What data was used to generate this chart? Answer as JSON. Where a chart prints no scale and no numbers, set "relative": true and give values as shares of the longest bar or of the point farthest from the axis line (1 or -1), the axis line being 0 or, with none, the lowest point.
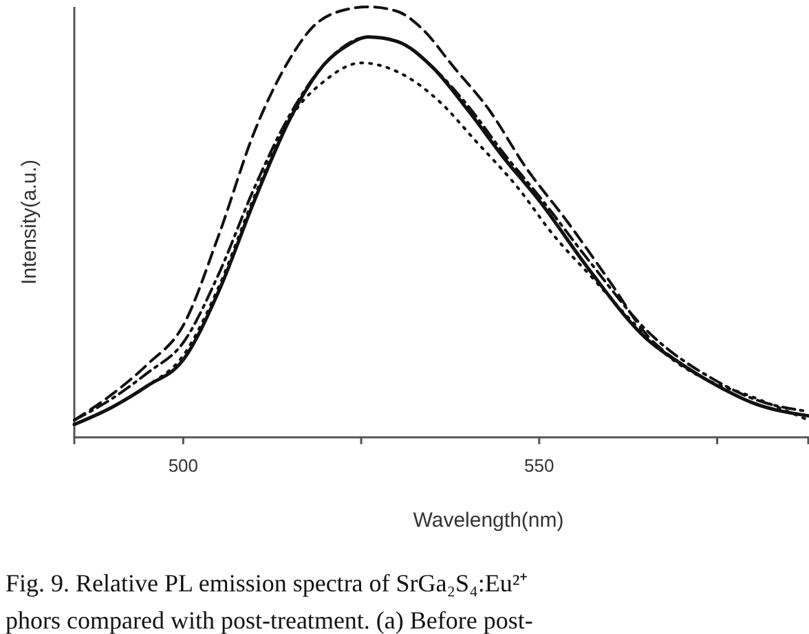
{
  "chart_data": {
    "type": "line",
    "relative": true,
    "xlabel": "Wavelength(nm)",
    "ylabel": "Intensity(a.u.)",
    "xlim": [
      484.7,
      587.8
    ],
    "xticks": [
      500,
      {
        "value": 525,
        "label": null
      },
      550,
      {
        "value": 575,
        "label": null
      }
    ],
    "grid": false,
    "marker": "none",
    "annotations": [
      "Fig. 9. Relative PL emission spectra of SrGa₂S₄:Eu²⁺",
      "phors compared with post-treatment. (a) Before post-"
    ],
    "series": [
      {
        "color": "#111111",
        "line_style": "solid",
        "x": [
          484.7,
          490,
          495,
          500,
          505,
          510,
          515,
          520,
          523,
          526,
          530,
          535,
          540,
          545,
          550,
          557,
          565,
          570,
          575,
          580,
          587.8
        ],
        "values": [
          0.03,
          0.07,
          0.12,
          0.18,
          0.34,
          0.55,
          0.74,
          0.87,
          0.91,
          0.93,
          0.92,
          0.86,
          0.76,
          0.65,
          0.55,
          0.39,
          0.23,
          0.17,
          0.12,
          0.08,
          0.05
        ]
      },
      {
        "color": "#111111",
        "line_style": "dashed",
        "x": [
          484.7,
          490,
          495,
          500,
          505,
          510,
          515,
          518,
          522,
          526,
          530,
          533.5,
          538,
          543,
          548,
          554,
          560,
          565,
          570,
          575,
          580,
          587.8
        ],
        "values": [
          0.04,
          0.1,
          0.17,
          0.26,
          0.47,
          0.71,
          0.88,
          0.95,
          0.99,
          1.0,
          0.99,
          0.95,
          0.86,
          0.76,
          0.63,
          0.5,
          0.36,
          0.24,
          0.17,
          0.12,
          0.08,
          0.05
        ]
      },
      {
        "color": "#111111",
        "line_style": "dotted",
        "x": [
          484.7,
          490,
          495,
          500,
          505,
          510,
          515,
          520,
          525,
          530,
          536,
          541,
          547,
          552,
          557.5,
          563,
          568,
          574,
          579,
          587.8
        ],
        "values": [
          0.03,
          0.07,
          0.12,
          0.19,
          0.35,
          0.56,
          0.74,
          0.83,
          0.87,
          0.85,
          0.78,
          0.69,
          0.58,
          0.47,
          0.37,
          0.27,
          0.19,
          0.13,
          0.1,
          0.04
        ]
      },
      {
        "color": "#111111",
        "line_style": "dashdot",
        "x": [
          484.7,
          490,
          495,
          500,
          505,
          510,
          515,
          520,
          526,
          530,
          535,
          540,
          545,
          550,
          557,
          565,
          575,
          580,
          587.8
        ],
        "values": [
          0.04,
          0.09,
          0.15,
          0.22,
          0.38,
          0.58,
          0.75,
          0.87,
          0.93,
          0.92,
          0.86,
          0.77,
          0.66,
          0.56,
          0.41,
          0.25,
          0.13,
          0.09,
          0.06
        ]
      }
    ]
  }
}
